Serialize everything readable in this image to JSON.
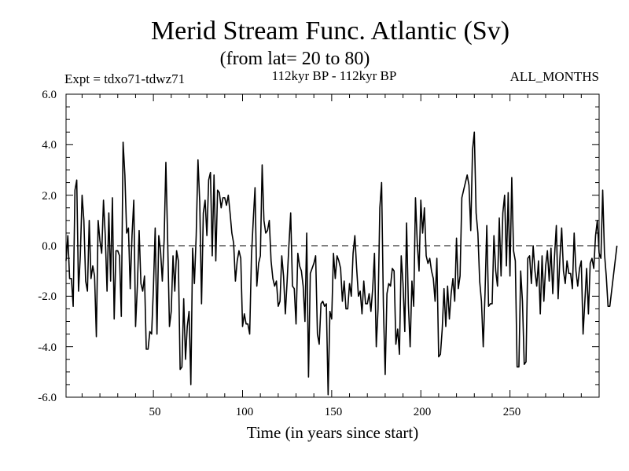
{
  "chart_data": {
    "type": "line",
    "title": "Merid Stream Func. Atlantic (Sv)",
    "subtitle": "(from lat= 20 to 80)",
    "experiment": "Expt = tdxo71-tdwz71",
    "period": "112kyr BP - 112kyr BP",
    "months": "ALL_MONTHS",
    "xlabel": "Time (in years since start)",
    "ylabel": "",
    "xlim": [
      1,
      300
    ],
    "ylim": [
      -6.0,
      6.0
    ],
    "x_ticks": [
      50,
      100,
      150,
      200,
      250
    ],
    "x_tick_labels": [
      "50",
      "100",
      "150",
      "200",
      "250"
    ],
    "y_ticks": [
      -6,
      -4,
      -2,
      0,
      2,
      4,
      6
    ],
    "y_tick_labels": [
      "-6.0",
      "-4.0",
      "-2.0",
      "0.0",
      "2.0",
      "4.0",
      "6.0"
    ],
    "zero_line": "dashed",
    "grid": false,
    "line_color": "#000000",
    "series": [
      {
        "name": "",
        "x_start": 1,
        "x_step": 1,
        "values": [
          -0.6,
          0.4,
          -1.3,
          -1.3,
          -2.4,
          2.2,
          2.6,
          -1.8,
          -0.4,
          2.0,
          1.0,
          -1.4,
          -1.8,
          1.0,
          -1.3,
          -0.8,
          -1.2,
          -3.6,
          1.0,
          0.2,
          -0.3,
          1.8,
          0.4,
          -1.8,
          1.3,
          -1.4,
          1.9,
          -2.9,
          -0.2,
          -0.2,
          -0.4,
          -2.8,
          4.1,
          2.8,
          0.5,
          0.7,
          -1.7,
          0.4,
          1.8,
          -3.2,
          -1.6,
          0.6,
          -1.5,
          -1.8,
          -1.2,
          -4.1,
          -4.1,
          -3.4,
          -3.5,
          -1.7,
          0.7,
          -3.5,
          0.4,
          -0.2,
          -1.4,
          0.2,
          3.3,
          0.2,
          -3.2,
          -2.6,
          -0.4,
          -1.8,
          -0.2,
          -0.6,
          -4.9,
          -4.8,
          -2.1,
          -4.5,
          -3.2,
          -2.6,
          -5.5,
          -0.1,
          -1.5,
          0.4,
          3.4,
          1.7,
          -2.3,
          1.3,
          1.8,
          0.4,
          2.6,
          2.9,
          -0.4,
          2.8,
          -0.6,
          2.2,
          2.1,
          1.5,
          1.9,
          1.9,
          1.6,
          2.0,
          1.3,
          0.5,
          0.1,
          -1.4,
          -0.6,
          -0.2,
          -0.5,
          -3.2,
          -2.7,
          -3.1,
          -3.1,
          -3.5,
          -0.4,
          1.0,
          2.3,
          -1.6,
          -0.7,
          -0.4,
          3.2,
          1.0,
          0.5,
          0.6,
          1.0,
          -0.6,
          -1.3,
          -1.6,
          -1.4,
          -2.4,
          -2.2,
          -0.4,
          -1.2,
          -2.7,
          -1.4,
          0.0,
          1.3,
          -1.6,
          -1.7,
          -3.1,
          -0.3,
          -0.8,
          -1.0,
          -1.6,
          -3.0,
          0.5,
          -5.2,
          -1.1,
          -0.9,
          -0.7,
          -0.4,
          -3.5,
          -3.9,
          -2.3,
          -2.2,
          -2.4,
          -2.3,
          -5.9,
          -2.6,
          -2.9,
          -0.3,
          -1.3,
          -0.4,
          -0.6,
          -0.9,
          -2.2,
          -1.4,
          -2.5,
          -2.5,
          -1.5,
          -2.0,
          -0.3,
          0.4,
          -0.9,
          -2.0,
          -1.8,
          -2.7,
          -1.4,
          -2.3,
          -2.3,
          -1.9,
          -2.6,
          -1.7,
          -0.3,
          -4.0,
          -2.5,
          1.5,
          2.5,
          -2.4,
          -5.1,
          -1.9,
          -1.5,
          -1.6,
          -0.9,
          -1.0,
          -3.9,
          -3.3,
          -4.3,
          -0.4,
          -1.5,
          -3.4,
          0.9,
          -2.3,
          -4.0,
          -1.4,
          -2.4,
          1.9,
          0.1,
          -1.0,
          1.8,
          0.5,
          1.5,
          -0.4,
          -0.7,
          -0.5,
          -1.0,
          -1.3,
          -2.2,
          -0.5,
          -4.4,
          -4.3,
          -3.3,
          -1.7,
          -3.2,
          -1.6,
          -2.9,
          -1.9,
          -1.3,
          -2.2,
          0.3,
          -1.7,
          -1.2,
          1.9,
          2.2,
          2.5,
          2.8,
          2.4,
          0.6,
          3.8,
          4.5,
          1.3,
          0.5,
          -1.4,
          -2.2,
          -4.0,
          -1.9,
          0.8,
          -2.4,
          -2.3,
          -2.3,
          0.4,
          -1.0,
          -1.6,
          1.1,
          -1.2,
          1.3,
          2.0,
          -0.8,
          2.1,
          -1.2,
          2.7,
          -0.2,
          -0.6,
          -4.8,
          -4.8,
          -1.0,
          -2.2,
          -4.7,
          -4.6,
          -0.5,
          -0.4,
          -1.5,
          0.0,
          -1.0,
          -1.6,
          -0.6,
          -2.7,
          -0.4,
          -2.2,
          -0.8,
          -0.2,
          -1.4,
          -0.1,
          -1.9,
          -0.4,
          0.8,
          -2.1,
          -0.5,
          0.7,
          -1.0,
          -1.5,
          -0.6,
          -1.1,
          -1.1,
          -1.7,
          0.5,
          -1.0,
          -1.6,
          -0.9,
          -0.6,
          -3.5,
          -2.2,
          -0.9,
          -2.7,
          -0.7,
          -0.5,
          -0.9,
          0.4,
          1.0,
          -0.3,
          -0.5,
          2.2,
          -0.3,
          -1.2,
          -2.4,
          -2.4,
          -1.8,
          -1.2,
          -0.6,
          0.0
        ]
      }
    ]
  }
}
